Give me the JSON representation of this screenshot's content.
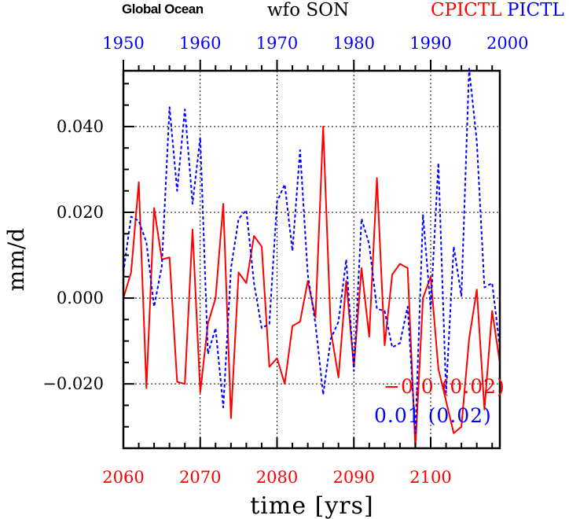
{
  "header": {
    "left": "Global Ocean",
    "center": "wfo SON",
    "right_red": "CPICTL",
    "right_blue": "PICTL"
  },
  "colors": {
    "red": "#ff0000",
    "blue": "#0000ff",
    "black": "#000000"
  },
  "chart_data": {
    "type": "line",
    "title": "wfo SON",
    "xlabel": "time [yrs]",
    "ylabel": "mm/d",
    "xlim": [
      2060,
      2109
    ],
    "ylim": [
      -0.035,
      0.053
    ],
    "top_xlim": [
      1950,
      1999
    ],
    "x_ticks": [
      "2060",
      "2070",
      "2080",
      "2090",
      "2100"
    ],
    "x_tick_values": [
      2060,
      2070,
      2080,
      2090,
      2100
    ],
    "top_ticks": [
      "1950",
      "1960",
      "1970",
      "1980",
      "1990",
      "2000"
    ],
    "top_tick_values": [
      1950,
      1960,
      1970,
      1980,
      1990,
      2000
    ],
    "y_ticks": [
      "−0.020",
      "0.000",
      "0.020",
      "0.040"
    ],
    "y_tick_values": [
      -0.02,
      0.0,
      0.02,
      0.04
    ],
    "grid": true,
    "series": [
      {
        "name": "CPICTL",
        "axis": "bottom",
        "color": "#ff0000",
        "style": "solid",
        "x_start": 2060,
        "values": [
          0.0,
          0.006,
          0.027,
          -0.021,
          0.021,
          0.009,
          0.0095,
          -0.0195,
          -0.02,
          0.016,
          -0.022,
          -0.006,
          0.0,
          0.022,
          -0.028,
          0.006,
          0.0035,
          0.0145,
          0.012,
          -0.016,
          -0.014,
          -0.02,
          -0.0065,
          -0.0055,
          0.004,
          -0.0045,
          0.04,
          -0.0075,
          -0.0185,
          0.004,
          -0.016,
          0.007,
          -0.009,
          0.028,
          -0.011,
          0.0055,
          0.008,
          0.007,
          -0.035,
          0.0,
          0.005,
          -0.0165,
          -0.024,
          -0.0315,
          -0.03,
          -0.0095,
          0.002,
          -0.026,
          -0.003,
          -0.015
        ]
      },
      {
        "name": "PICTL",
        "axis": "top",
        "color": "#0000ff",
        "style": "dashed",
        "x_start": 1950,
        "values": [
          0.006,
          0.019,
          0.018,
          0.013,
          -0.002,
          0.0075,
          0.0445,
          0.025,
          0.044,
          0.022,
          0.0375,
          -0.013,
          -0.007,
          -0.0255,
          0.007,
          0.0185,
          0.0205,
          0.0035,
          -0.007,
          -0.006,
          0.0225,
          0.0265,
          0.011,
          0.0345,
          0.0055,
          -0.006,
          -0.0225,
          -0.0095,
          -0.0055,
          0.009,
          -0.017,
          0.0185,
          0.0125,
          -0.0025,
          -0.003,
          -0.0115,
          -0.0105,
          -0.002,
          -0.0315,
          0.0195,
          -0.0025,
          0.0315,
          -0.022,
          0.012,
          0.0005,
          0.0535,
          0.0365,
          0.0025,
          0.0035,
          -0.0115
        ]
      }
    ],
    "annotations": [
      {
        "text": "−0.0 (0.02)",
        "color": "#ff0000"
      },
      {
        "text": "0.01 (0.02)",
        "color": "#0000ff"
      }
    ]
  }
}
